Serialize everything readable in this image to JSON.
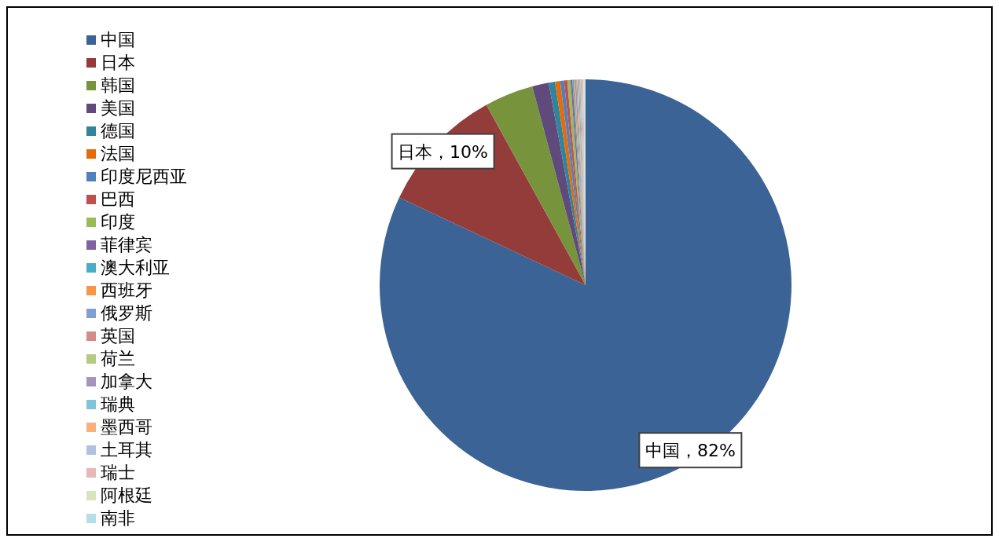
{
  "chart_data": {
    "type": "pie",
    "categories": [
      "中国",
      "日本",
      "韩国",
      "美国",
      "德国",
      "法国",
      "印度尼西亚",
      "巴西",
      "印度",
      "菲律宾",
      "澳大利亚",
      "西班牙",
      "俄罗斯",
      "英国",
      "荷兰",
      "加拿大",
      "瑞典",
      "墨西哥",
      "土耳其",
      "瑞士",
      "阿根廷",
      "南非"
    ],
    "values": [
      82,
      10,
      3.83,
      1.3,
      0.5,
      0.4,
      0.3,
      0.25,
      0.25,
      0.15,
      0.1,
      0.1,
      0.1,
      0.08,
      0.08,
      0.08,
      0.08,
      0.08,
      0.08,
      0.08,
      0.08,
      0.08
    ],
    "colors": [
      "#3b6396",
      "#943c3a",
      "#77933c",
      "#604a7b",
      "#31849b",
      "#e46c0a",
      "#4f81bd",
      "#c0504d",
      "#9bbb59",
      "#8064a2",
      "#4bacc6",
      "#f79646",
      "#7f9fcf",
      "#d58b8a",
      "#b3cc82",
      "#a495bc",
      "#7fc4d8",
      "#f9b07f",
      "#b0c1e0",
      "#e5b8b7",
      "#d7e4bd",
      "#b7dde8"
    ],
    "value_labels": [
      "中国，82%",
      "日本，10%",
      null,
      null,
      null,
      null,
      null,
      null,
      null,
      null,
      null,
      null,
      null,
      null,
      null,
      null,
      null,
      null,
      null,
      null,
      null,
      null
    ],
    "legend": "left"
  }
}
